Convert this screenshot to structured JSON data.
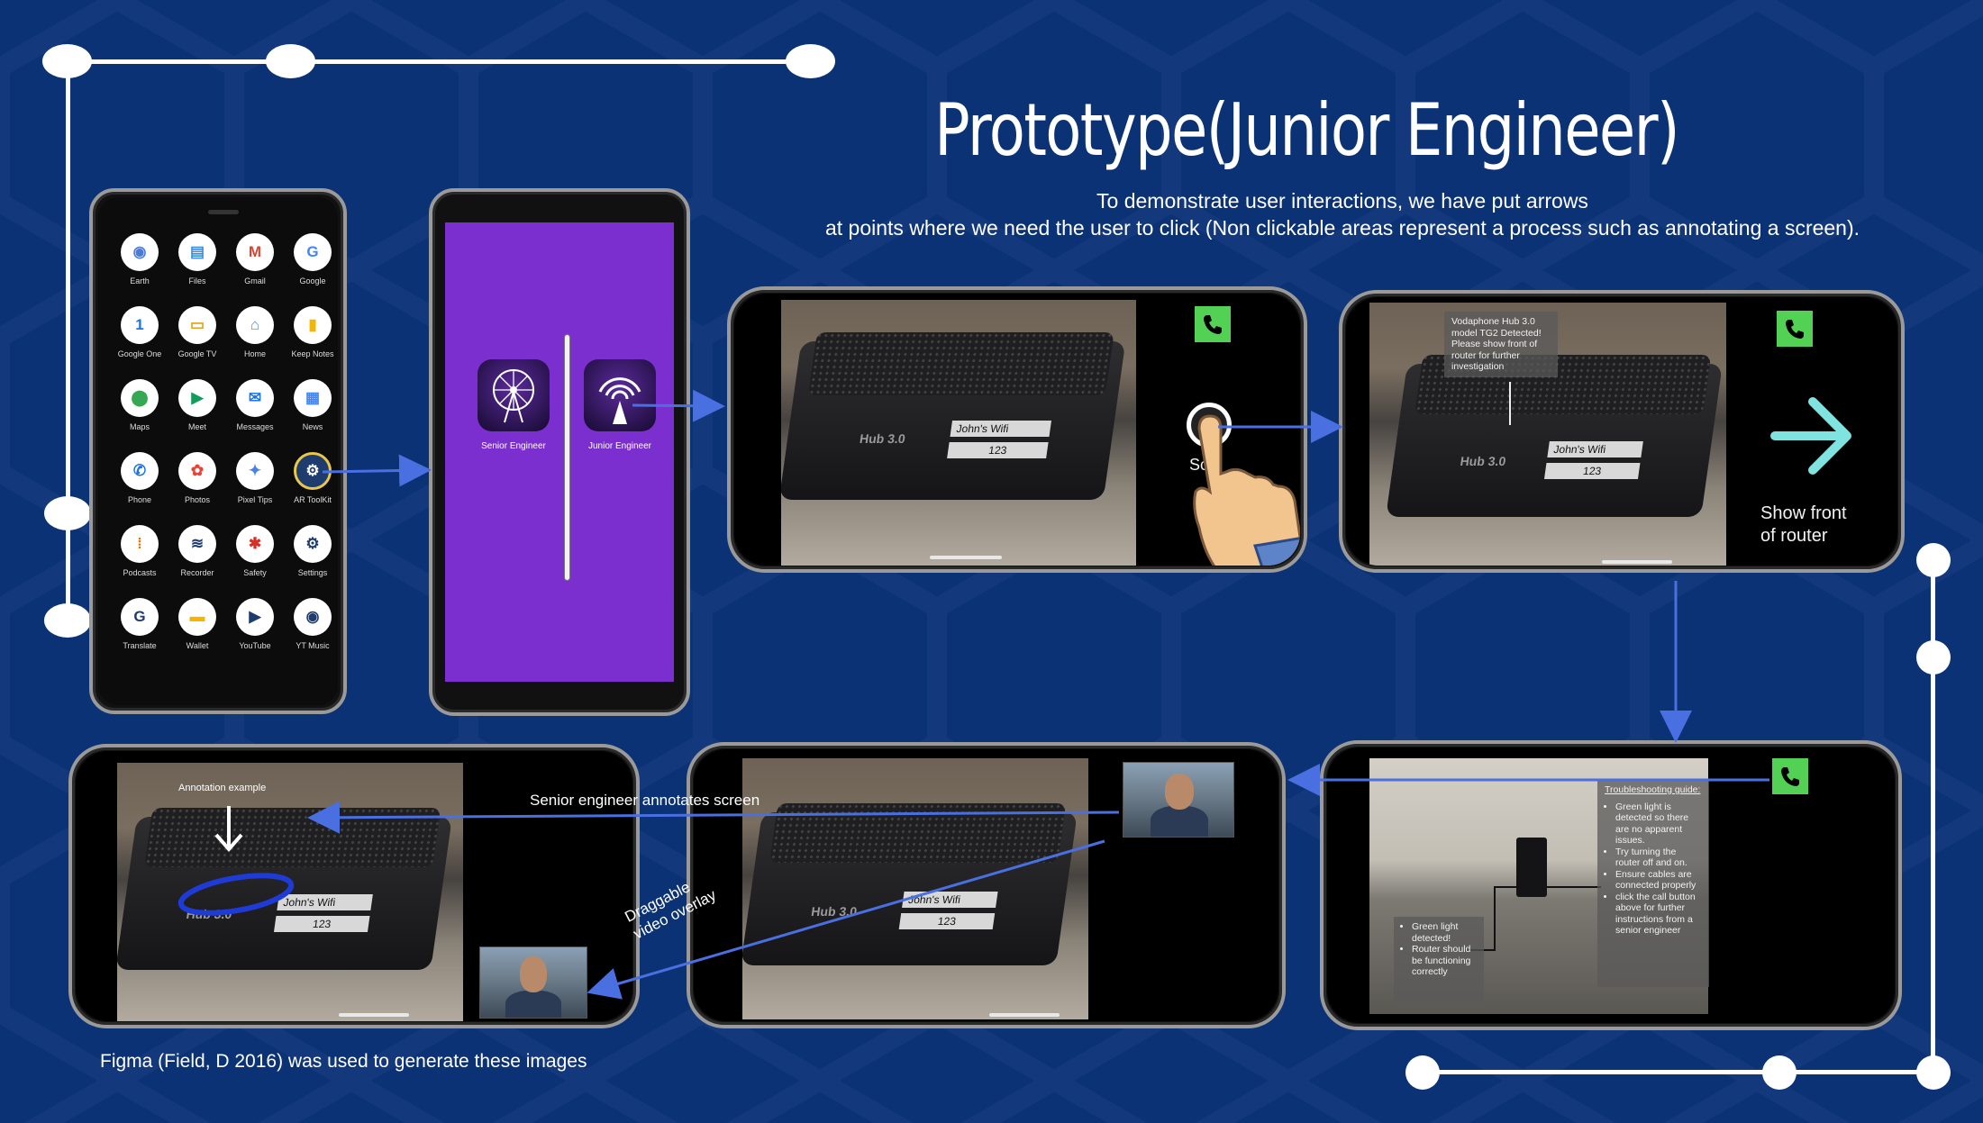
{
  "slide": {
    "title": "Prototype(Junior Engineer)",
    "subtitle_line1": "To demonstrate user interactions, we have put arrows",
    "subtitle_line2": "at points where we need the user to click (Non clickable areas represent a process such as annotating a screen).",
    "caption": "Figma (Field, D 2016) was used to generate these images"
  },
  "home_screen": {
    "apps": [
      {
        "label": "Earth",
        "icon": "earth-icon",
        "glyph": "◉",
        "color": "#4a7bd8"
      },
      {
        "label": "Files",
        "icon": "files-icon",
        "glyph": "▤",
        "color": "#3b8de0"
      },
      {
        "label": "Gmail",
        "icon": "gmail-icon",
        "glyph": "M",
        "color": "#d64535"
      },
      {
        "label": "Google",
        "icon": "google-icon",
        "glyph": "G",
        "color": "#4285f4"
      },
      {
        "label": "Google One",
        "icon": "google-one-icon",
        "glyph": "1",
        "color": "#1a73e8"
      },
      {
        "label": "Google TV",
        "icon": "google-tv-icon",
        "glyph": "▭",
        "color": "#e7a019"
      },
      {
        "label": "Home",
        "icon": "home-icon",
        "glyph": "⌂",
        "color": "#4a90d8"
      },
      {
        "label": "Keep Notes",
        "icon": "keep-notes-icon",
        "glyph": "▮",
        "color": "#f2b705"
      },
      {
        "label": "Maps",
        "icon": "maps-icon",
        "glyph": "⬤",
        "color": "#34a853"
      },
      {
        "label": "Meet",
        "icon": "meet-icon",
        "glyph": "▶",
        "color": "#0f9d58"
      },
      {
        "label": "Messages",
        "icon": "messages-icon",
        "glyph": "✉",
        "color": "#1a73e8"
      },
      {
        "label": "News",
        "icon": "news-icon",
        "glyph": "▦",
        "color": "#4285f4"
      },
      {
        "label": "Phone",
        "icon": "phone-icon",
        "glyph": "✆",
        "color": "#1a73e8"
      },
      {
        "label": "Photos",
        "icon": "photos-icon",
        "glyph": "✿",
        "color": "#ea4335"
      },
      {
        "label": "Pixel Tips",
        "icon": "pixel-tips-icon",
        "glyph": "✦",
        "color": "#4a82e0"
      },
      {
        "label": "AR ToolKit",
        "icon": "ar-toolkit-icon",
        "glyph": "⚙",
        "color": "#ffffff"
      },
      {
        "label": "Podcasts",
        "icon": "podcasts-icon",
        "glyph": "⁞",
        "color": "#e37400"
      },
      {
        "label": "Recorder",
        "icon": "recorder-icon",
        "glyph": "≋",
        "color": "#ffffff"
      },
      {
        "label": "Safety",
        "icon": "safety-icon",
        "glyph": "✱",
        "color": "#d93025"
      },
      {
        "label": "Settings",
        "icon": "settings-icon",
        "glyph": "⚙",
        "color": "#ffffff"
      },
      {
        "label": "Translate",
        "icon": "translate-icon",
        "glyph": "G",
        "color": "#ffffff"
      },
      {
        "label": "Wallet",
        "icon": "wallet-icon",
        "glyph": "▬",
        "color": "#f4b400"
      },
      {
        "label": "YouTube",
        "icon": "youtube-icon",
        "glyph": "▶",
        "color": "#ffffff"
      },
      {
        "label": "YT Music",
        "icon": "yt-music-icon",
        "glyph": "◉",
        "color": "#ffffff"
      }
    ]
  },
  "role_select": {
    "senior_label": "Senior Engineer",
    "junior_label": "Junior Engineer"
  },
  "scan_screen": {
    "plate_wifi": "John's Wifi",
    "plate_num": "123",
    "hub": "Hub 3.0",
    "scan_partial": "Sca"
  },
  "detect_screen": {
    "info_text": "Vodaphone Hub 3.0 model TG2 Detected! Please show front of router for further investigation",
    "plate_wifi": "John's Wifi",
    "plate_num": "123",
    "hub": "Hub 3.0",
    "instruction_line1": "Show front",
    "instruction_line2": "of router"
  },
  "guide_screen": {
    "guide_title": "Troubleshooting guide:",
    "guide_items": [
      "Green light is detected so there are no apparent issues.",
      "Try turning the router off and on.",
      "Ensure cables are connected properly",
      "click the call button above for further instructions from a senior engineer"
    ],
    "status_items": [
      "Green light detected!",
      "Router should be functioning correctly"
    ]
  },
  "call_screen": {
    "plate_wifi": "John's Wifi",
    "plate_num": "123",
    "hub": "Hub 3.0"
  },
  "annotate_screen": {
    "annotation_example": "Annotation example",
    "plate_wifi": "John's Wifi",
    "plate_num": "123",
    "hub": "Hub 3.0"
  },
  "flow_labels": {
    "annotates": "Senior engineer annotates screen",
    "draggable_line1": "Draggable",
    "draggable_line2": "video overlay"
  },
  "colors": {
    "background": "#0b3274",
    "flow_arrow": "#4a6fe0",
    "splash_purple": "#7b2fce",
    "call_green": "#52d155",
    "annotation_ring": "#1f3bd6"
  }
}
